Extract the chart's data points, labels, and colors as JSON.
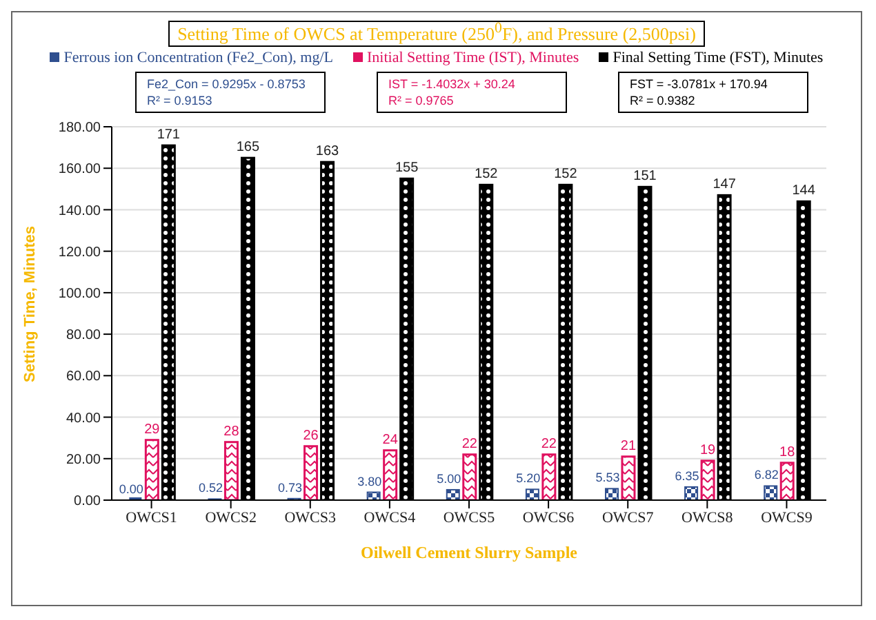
{
  "chart_data": {
    "type": "bar",
    "title": "Setting Time of OWCS at Temperature (250$^{0}$F), and Pressure (2,500psi)",
    "xlabel": "Oilwell Cement Slurry Sample",
    "ylabel": "Setting Time, Minutes",
    "categories": [
      "OWCS1",
      "OWCS2",
      "OWCS3",
      "OWCS4",
      "OWCS5",
      "OWCS6",
      "OWCS7",
      "OWCS8",
      "OWCS9"
    ],
    "series": [
      {
        "name": "Ferrous ion Concentration (Fe2_Con), mg/L",
        "color": "#2f4f8f",
        "values": [
          0,
          0.52,
          0.73,
          3.8,
          5,
          5.2,
          5.53,
          6.35,
          6.82
        ],
        "value_labels": [
          "0.00",
          "0.52",
          "0.73",
          "3.80",
          "5.00",
          "5.20",
          "5.53",
          "6.35",
          "6.82"
        ]
      },
      {
        "name": "Initial Setting Time (IST), Minutes",
        "color": "#e0115f",
        "values": [
          29,
          28,
          26,
          24,
          22,
          22,
          21,
          19,
          18
        ],
        "value_labels": [
          "29",
          "28",
          "26",
          "24",
          "22",
          "22",
          "21",
          "19",
          "18"
        ]
      },
      {
        "name": "Final Setting Time (FST), Minutes",
        "color": "#000000",
        "values": [
          171,
          165,
          163,
          155,
          152,
          152,
          151,
          147,
          144
        ],
        "value_labels": [
          "171",
          "165",
          "163",
          "155",
          "152",
          "152",
          "151",
          "147",
          "144"
        ]
      }
    ],
    "ylim": [
      0,
      180
    ],
    "yticks": [
      {
        "value": 0,
        "label": "0.00"
      },
      {
        "value": 20,
        "label": "20.00"
      },
      {
        "value": 40,
        "label": "40.00"
      },
      {
        "value": 60,
        "label": "60.00"
      },
      {
        "value": 80,
        "label": "80.00"
      },
      {
        "value": 100,
        "label": "100.00"
      },
      {
        "value": 120,
        "label": "120.00"
      },
      {
        "value": 140,
        "label": "140.00"
      },
      {
        "value": 160,
        "label": "160.00"
      },
      {
        "value": 180,
        "label": "180.00"
      }
    ],
    "grid": "y",
    "legend": "top",
    "annotations": [
      "Fe2_Con = 0.9295x - 0.8753\nR² = 0.9153",
      "IST = -1.4032x + 30.24\nR² = 0.9765",
      "FST = -3.0781x + 170.94\nR² = 0.9382"
    ]
  }
}
